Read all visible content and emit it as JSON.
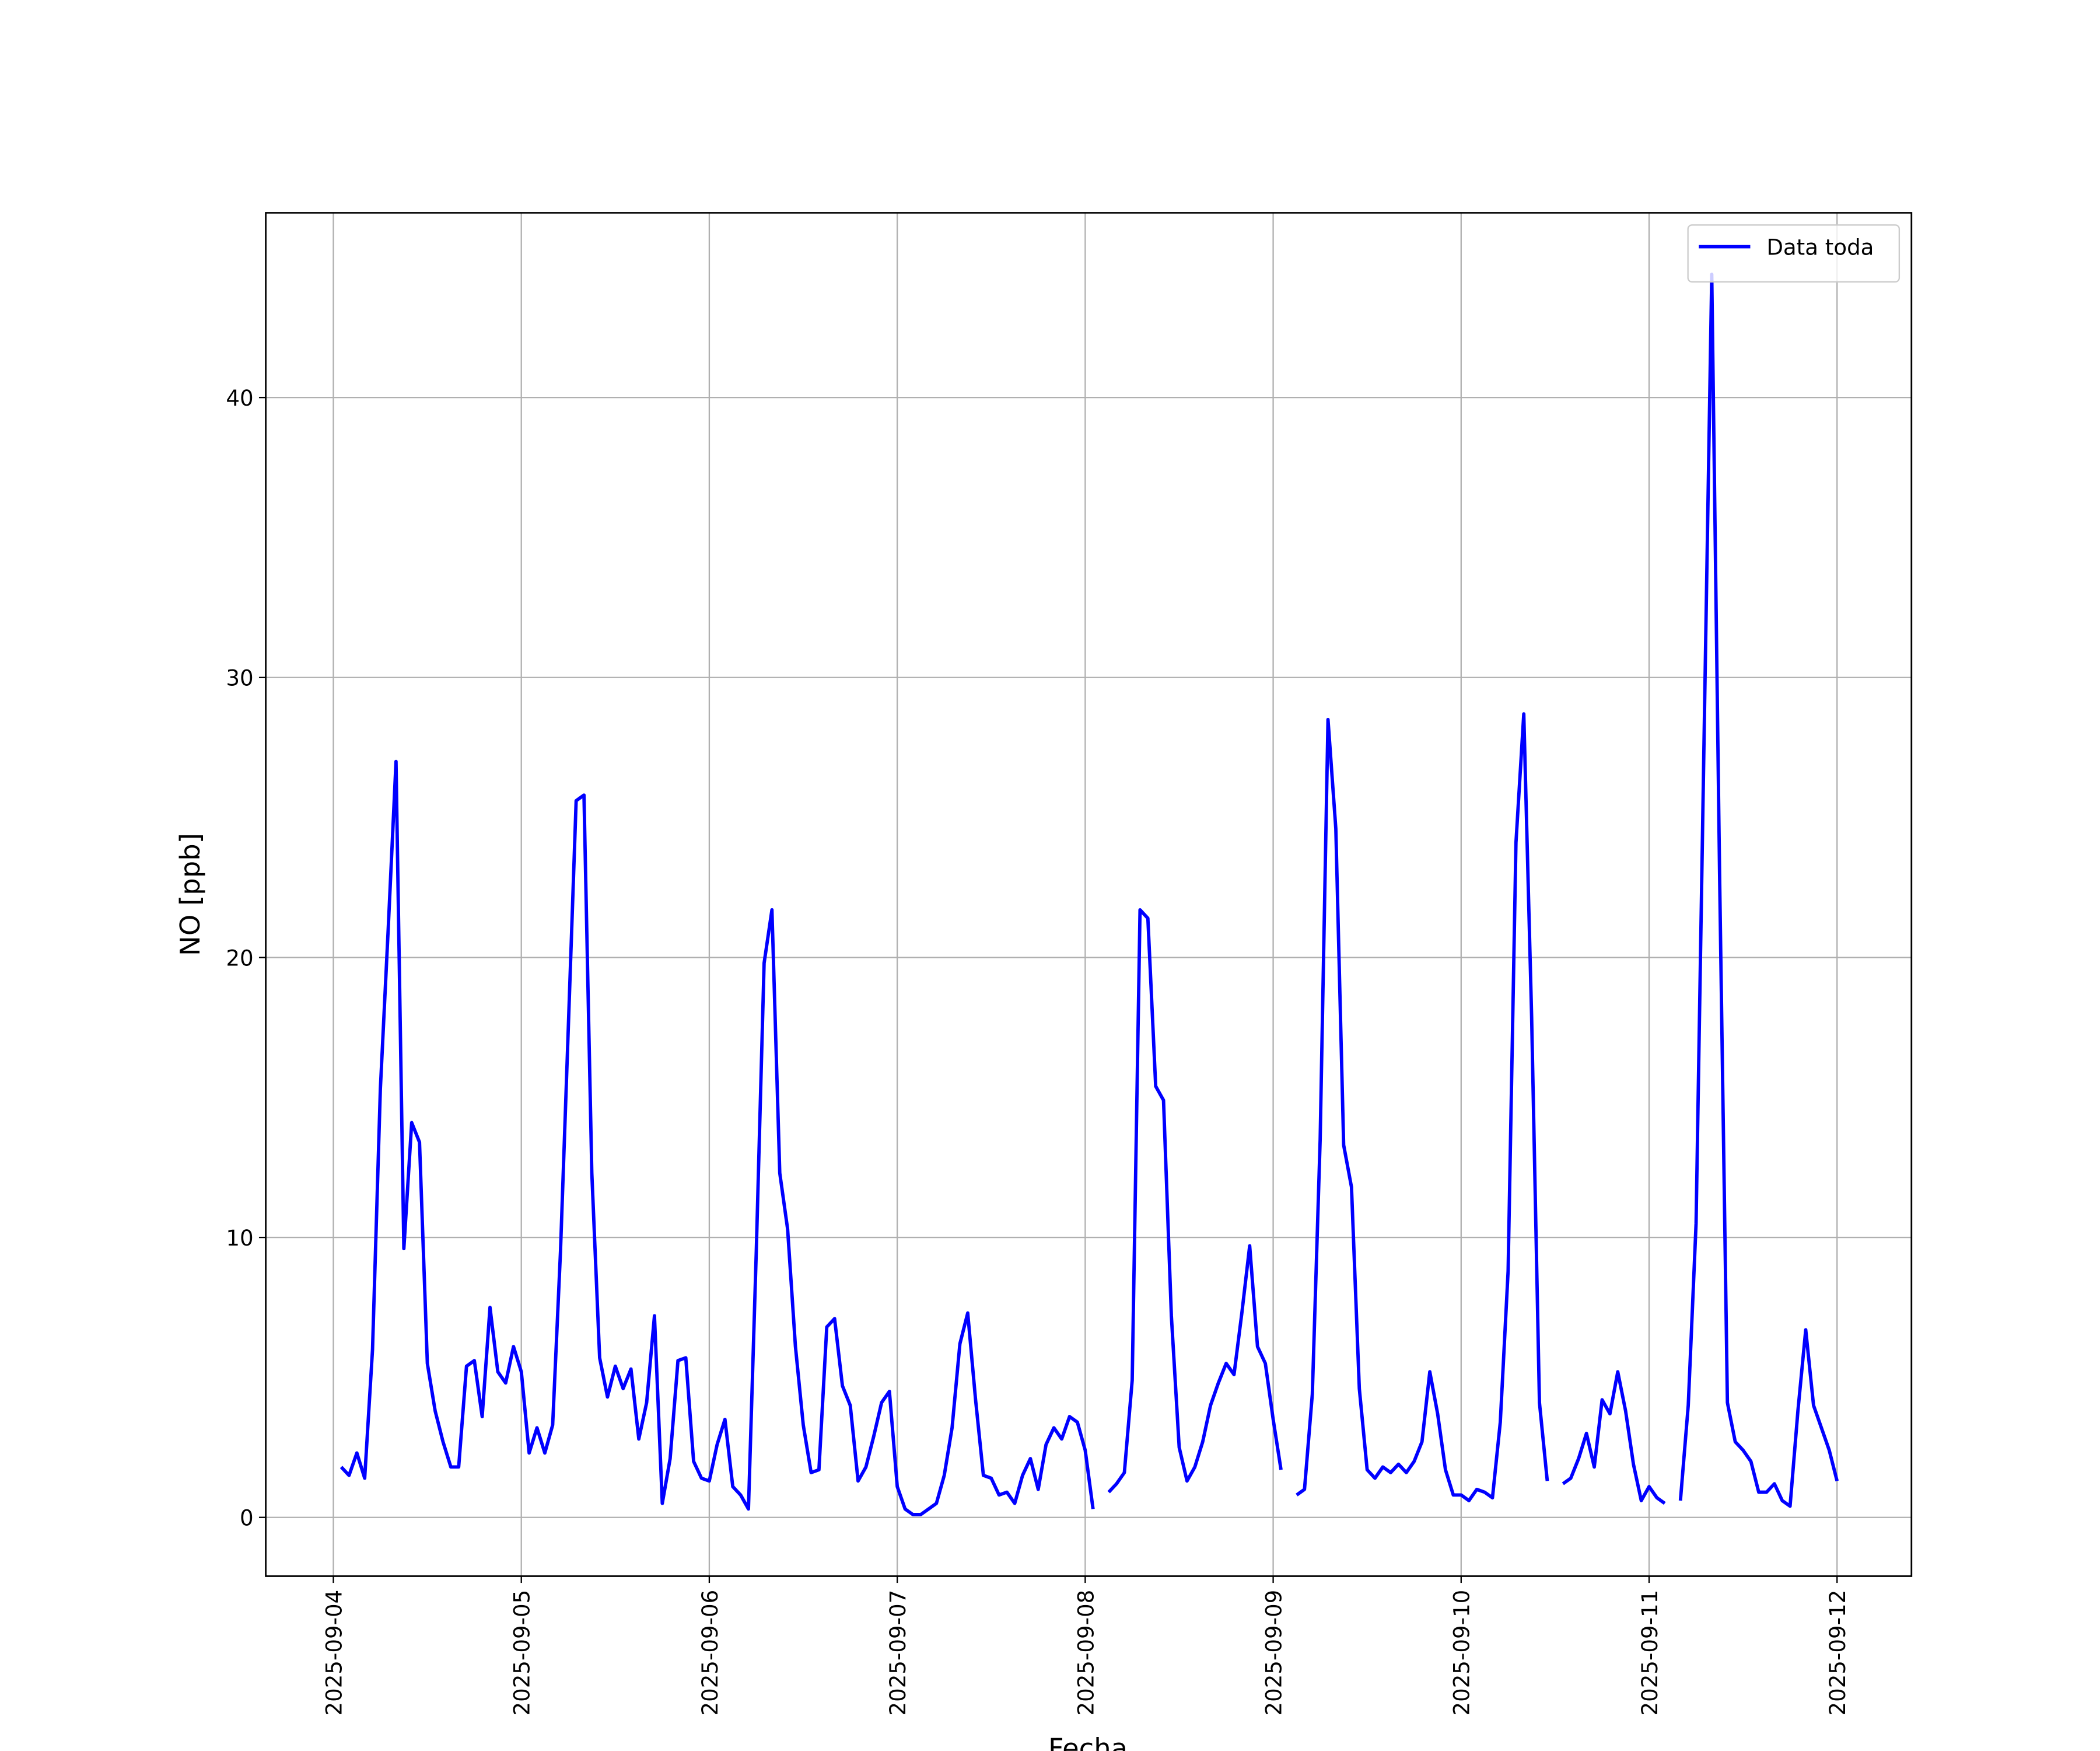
{
  "chart_data": {
    "type": "line",
    "xlabel": "Fecha",
    "ylabel": "NO [ppb]",
    "xlim": [
      "2025-09-03T15:22",
      "2025-09-12T09:30"
    ],
    "xticks": [
      "2025-09-04",
      "2025-09-05",
      "2025-09-06",
      "2025-09-07",
      "2025-09-08",
      "2025-09-09",
      "2025-09-10",
      "2025-09-11",
      "2025-09-12"
    ],
    "ylim": [
      -2.1,
      46.6
    ],
    "yticks": [
      0,
      10,
      20,
      30,
      40
    ],
    "grid": true,
    "legend": "upper right",
    "x": [
      "2025-09-04T01:00",
      "2025-09-04T02:00",
      "2025-09-04T03:00",
      "2025-09-04T04:00",
      "2025-09-04T05:00",
      "2025-09-04T06:00",
      "2025-09-04T07:00",
      "2025-09-04T08:00",
      "2025-09-04T09:00",
      "2025-09-04T10:00",
      "2025-09-04T11:00",
      "2025-09-04T12:00",
      "2025-09-04T13:00",
      "2025-09-04T14:00",
      "2025-09-04T15:00",
      "2025-09-04T16:00",
      "2025-09-04T17:00",
      "2025-09-04T18:00",
      "2025-09-04T19:00",
      "2025-09-04T20:00",
      "2025-09-04T21:00",
      "2025-09-04T22:00",
      "2025-09-04T23:00",
      "2025-09-05T00:00",
      "2025-09-05T01:00",
      "2025-09-05T02:00",
      "2025-09-05T03:00",
      "2025-09-05T04:00",
      "2025-09-05T05:00",
      "2025-09-05T06:00",
      "2025-09-05T07:00",
      "2025-09-05T08:00",
      "2025-09-05T09:00",
      "2025-09-05T10:00",
      "2025-09-05T11:00",
      "2025-09-05T12:00",
      "2025-09-05T13:00",
      "2025-09-05T14:00",
      "2025-09-05T15:00",
      "2025-09-05T16:00",
      "2025-09-05T17:00",
      "2025-09-05T18:00",
      "2025-09-05T19:00",
      "2025-09-05T20:00",
      "2025-09-05T21:00",
      "2025-09-05T22:00",
      "2025-09-05T23:00",
      "2025-09-06T00:00",
      "2025-09-06T01:00",
      "2025-09-06T02:00",
      "2025-09-06T03:00",
      "2025-09-06T04:00",
      "2025-09-06T05:00",
      "2025-09-06T06:00",
      "2025-09-06T07:00",
      "2025-09-06T08:00",
      "2025-09-06T09:00",
      "2025-09-06T10:00",
      "2025-09-06T11:00",
      "2025-09-06T12:00",
      "2025-09-06T13:00",
      "2025-09-06T14:00",
      "2025-09-06T15:00",
      "2025-09-06T16:00",
      "2025-09-06T17:00",
      "2025-09-06T18:00",
      "2025-09-06T19:00",
      "2025-09-06T20:00",
      "2025-09-06T21:00",
      "2025-09-06T22:00",
      "2025-09-06T23:00",
      "2025-09-07T00:00",
      "2025-09-07T01:00",
      "2025-09-07T02:00",
      "2025-09-07T03:00",
      "2025-09-07T04:00",
      "2025-09-07T05:00",
      "2025-09-07T06:00",
      "2025-09-07T07:00",
      "2025-09-07T08:00",
      "2025-09-07T09:00",
      "2025-09-07T10:00",
      "2025-09-07T11:00",
      "2025-09-07T12:00",
      "2025-09-07T13:00",
      "2025-09-07T14:00",
      "2025-09-07T15:00",
      "2025-09-07T16:00",
      "2025-09-07T17:00",
      "2025-09-07T18:00",
      "2025-09-07T19:00",
      "2025-09-07T20:00",
      "2025-09-07T21:00",
      "2025-09-07T22:00",
      "2025-09-07T23:00",
      "2025-09-08T00:00",
      "2025-09-08T01:00",
      "2025-09-08T02:00",
      "2025-09-08T03:00",
      "2025-09-08T04:00",
      "2025-09-08T05:00",
      "2025-09-08T06:00",
      "2025-09-08T07:00",
      "2025-09-08T08:00",
      "2025-09-08T09:00",
      "2025-09-08T10:00",
      "2025-09-08T11:00",
      "2025-09-08T12:00",
      "2025-09-08T13:00",
      "2025-09-08T14:00",
      "2025-09-08T15:00",
      "2025-09-08T16:00",
      "2025-09-08T17:00",
      "2025-09-08T18:00",
      "2025-09-08T19:00",
      "2025-09-08T20:00",
      "2025-09-08T21:00",
      "2025-09-08T22:00",
      "2025-09-08T23:00",
      "2025-09-09T00:00",
      "2025-09-09T01:00",
      "2025-09-09T02:00",
      "2025-09-09T03:00",
      "2025-09-09T04:00",
      "2025-09-09T05:00",
      "2025-09-09T06:00",
      "2025-09-09T07:00",
      "2025-09-09T08:00",
      "2025-09-09T09:00",
      "2025-09-09T10:00",
      "2025-09-09T11:00",
      "2025-09-09T12:00",
      "2025-09-09T13:00",
      "2025-09-09T14:00",
      "2025-09-09T15:00",
      "2025-09-09T16:00",
      "2025-09-09T17:00",
      "2025-09-09T18:00",
      "2025-09-09T19:00",
      "2025-09-09T20:00",
      "2025-09-09T21:00",
      "2025-09-09T22:00",
      "2025-09-09T23:00",
      "2025-09-10T00:00",
      "2025-09-10T01:00",
      "2025-09-10T02:00",
      "2025-09-10T03:00",
      "2025-09-10T04:00",
      "2025-09-10T05:00",
      "2025-09-10T06:00",
      "2025-09-10T07:00",
      "2025-09-10T08:00",
      "2025-09-10T09:00",
      "2025-09-10T10:00",
      "2025-09-10T11:00",
      "2025-09-10T12:00",
      "2025-09-10T13:00",
      "2025-09-10T14:00",
      "2025-09-10T15:00",
      "2025-09-10T16:00",
      "2025-09-10T17:00",
      "2025-09-10T18:00",
      "2025-09-10T19:00",
      "2025-09-10T20:00",
      "2025-09-10T21:00",
      "2025-09-10T22:00",
      "2025-09-10T23:00",
      "2025-09-11T00:00",
      "2025-09-11T01:00",
      "2025-09-11T02:00",
      "2025-09-11T03:00",
      "2025-09-11T04:00",
      "2025-09-11T05:00",
      "2025-09-11T06:00",
      "2025-09-11T07:00",
      "2025-09-11T08:00",
      "2025-09-11T09:00",
      "2025-09-11T10:00",
      "2025-09-11T11:00",
      "2025-09-11T12:00",
      "2025-09-11T13:00",
      "2025-09-11T14:00",
      "2025-09-11T15:00",
      "2025-09-11T16:00",
      "2025-09-11T17:00",
      "2025-09-11T18:00",
      "2025-09-11T19:00",
      "2025-09-11T20:00",
      "2025-09-11T21:00",
      "2025-09-11T22:00",
      "2025-09-11T23:00",
      "2025-09-12T00:00"
    ],
    "series": [
      {
        "name": "Data toda",
        "color": "#0000ff",
        "values": [
          1.8,
          1.5,
          2.3,
          1.4,
          6,
          15.3,
          21,
          27,
          9.6,
          14.1,
          13.4,
          5.5,
          3.8,
          2.7,
          1.8,
          1.8,
          5.4,
          5.6,
          3.6,
          7.5,
          5.2,
          4.8,
          6.1,
          5.2,
          2.3,
          3.2,
          2.3,
          3.3,
          9.5,
          17.5,
          25.6,
          25.8,
          12.3,
          5.7,
          4.3,
          5.4,
          4.6,
          5.3,
          2.8,
          4.1,
          7.2,
          0.5,
          2.1,
          5.6,
          5.7,
          2.0,
          1.4,
          1.3,
          2.6,
          3.5,
          1.1,
          0.8,
          0.3,
          9.5,
          19.8,
          21.7,
          12.3,
          10.3,
          6.1,
          3.3,
          1.6,
          1.7,
          6.8,
          7.1,
          4.7,
          4.0,
          1.3,
          1.8,
          2.9,
          4.1,
          4.5,
          1.1,
          0.3,
          0.1,
          0.1,
          0.3,
          0.5,
          1.5,
          3.2,
          6.2,
          7.3,
          4.2,
          1.5,
          1.4,
          0.8,
          0.9,
          0.5,
          1.5,
          2.1,
          1.0,
          2.6,
          3.2,
          2.8,
          3.6,
          3.4,
          2.4,
          0.3,
          null,
          0.9,
          1.2,
          1.6,
          4.9,
          21.7,
          21.4,
          15.4,
          14.9,
          7.2,
          2.5,
          1.3,
          1.8,
          2.7,
          4.0,
          4.8,
          5.5,
          5.1,
          7.3,
          9.7,
          6.1,
          5.5,
          3.5,
          1.7,
          null,
          0.8,
          1.0,
          4.4,
          13.5,
          28.5,
          24.6,
          13.3,
          11.8,
          4.6,
          1.7,
          1.4,
          1.8,
          1.6,
          1.9,
          1.6,
          2.0,
          2.7,
          5.2,
          3.7,
          1.7,
          0.8,
          0.8,
          0.6,
          1.0,
          0.9,
          0.7,
          3.4,
          8.8,
          24.1,
          28.7,
          17.9,
          4.1,
          1.3,
          null,
          1.2,
          1.4,
          2.1,
          3.0,
          1.8,
          4.2,
          3.7,
          5.2,
          3.8,
          1.9,
          0.6,
          1.1,
          0.7,
          0.5,
          null,
          0.6,
          4.0,
          10.5,
          27.5,
          44.4,
          23,
          4.1,
          2.7,
          2.4,
          2.0,
          0.9,
          0.9,
          1.2,
          0.6,
          0.4,
          3.8,
          6.7,
          4.0,
          3.2,
          2.4,
          1.3
        ]
      }
    ]
  }
}
